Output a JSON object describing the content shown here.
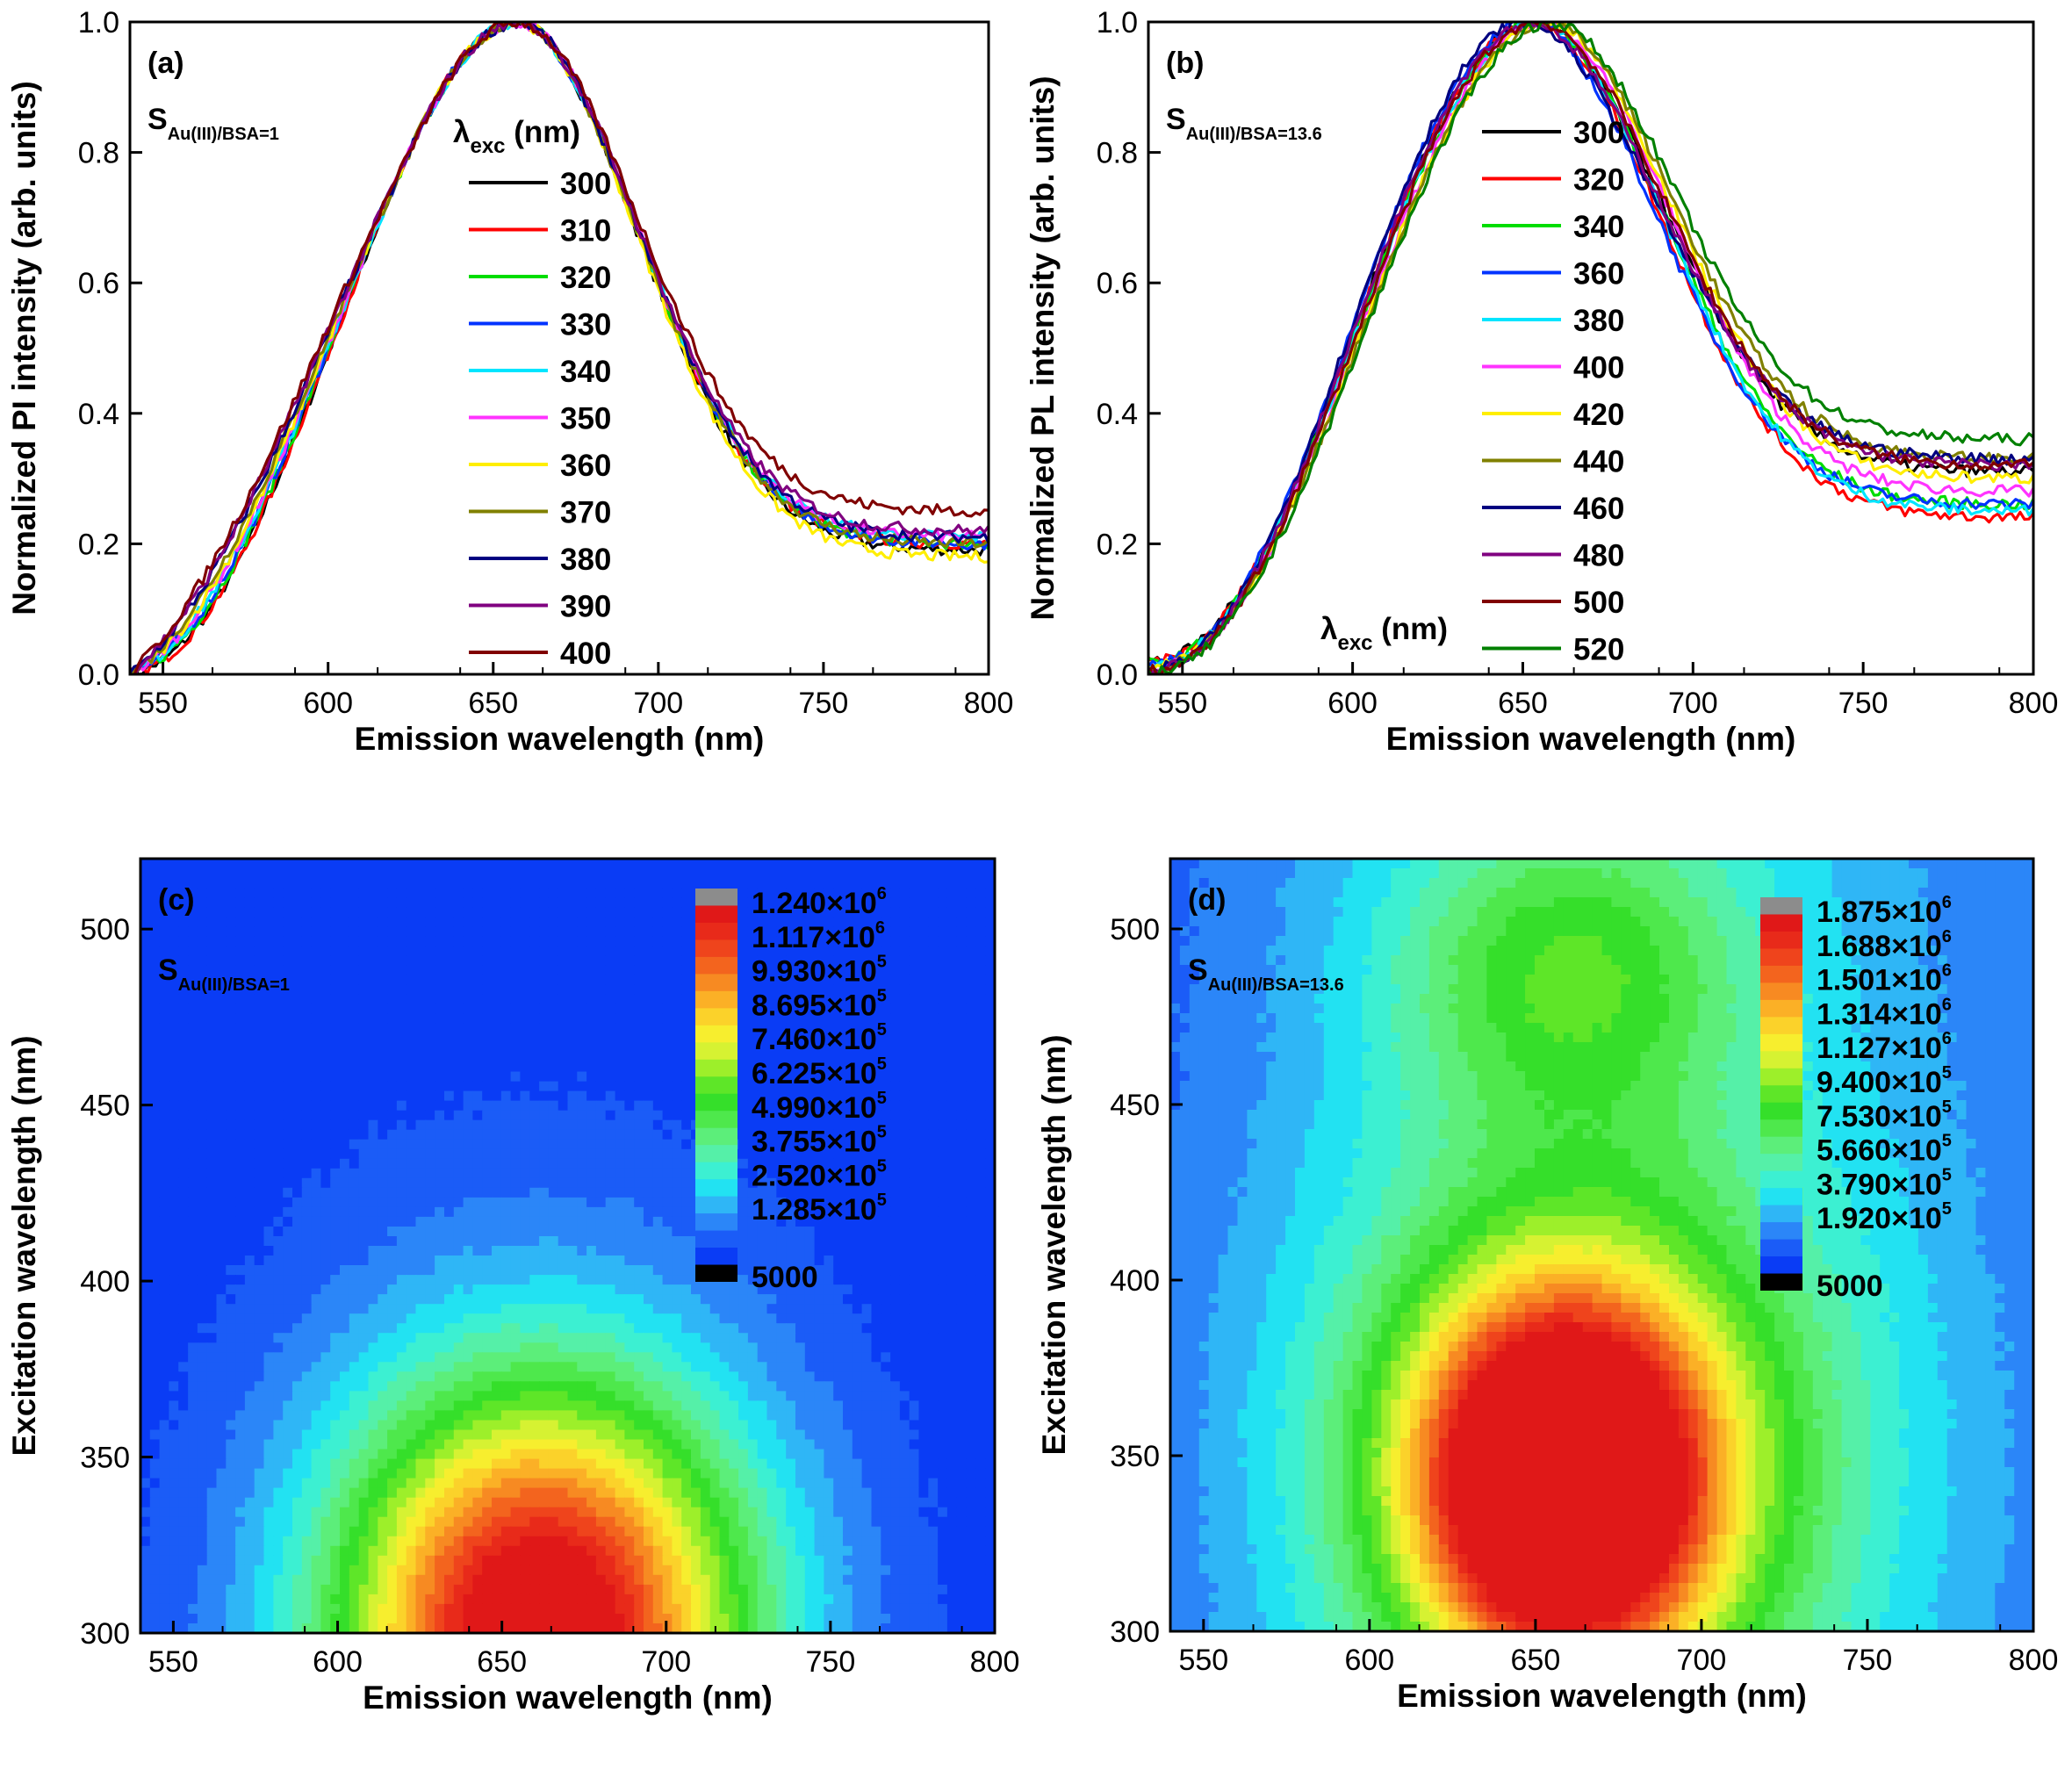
{
  "chart_data": [
    {
      "type": "line",
      "panel": "(a)",
      "sample": {
        "main": "S",
        "sub": "Au(III)/BSA=1"
      },
      "xlabel": "Emission wavelength (nm)",
      "ylabel": "Normalized PI intensity (arb. units)",
      "xlim": [
        540,
        800
      ],
      "ylim": [
        0,
        1.0
      ],
      "xticks": [
        550,
        600,
        650,
        700,
        750,
        800
      ],
      "yticks": [
        0.0,
        0.2,
        0.4,
        0.6,
        0.8,
        1.0
      ],
      "yticklabels": [
        "0.0",
        "0.2",
        "0.4",
        "0.6",
        "0.8",
        "1.0"
      ],
      "legend_title": {
        "main": "λ",
        "sub": "exc",
        "rest": " (nm)"
      },
      "legend_position": "center-left",
      "peak_nm": 658,
      "series": [
        {
          "name": "300",
          "color": "#000000",
          "shoulder": 0.02,
          "tail": 0.19
        },
        {
          "name": "310",
          "color": "#ff0000",
          "shoulder": 0.02,
          "tail": 0.2
        },
        {
          "name": "320",
          "color": "#00dd00",
          "shoulder": 0.03,
          "tail": 0.2
        },
        {
          "name": "330",
          "color": "#0033ff",
          "shoulder": 0.035,
          "tail": 0.2
        },
        {
          "name": "340",
          "color": "#00e5ff",
          "shoulder": 0.04,
          "tail": 0.21
        },
        {
          "name": "350",
          "color": "#ff33ff",
          "shoulder": 0.045,
          "tail": 0.21
        },
        {
          "name": "360",
          "color": "#ffee00",
          "shoulder": 0.05,
          "tail": 0.18
        },
        {
          "name": "370",
          "color": "#808000",
          "shoulder": 0.06,
          "tail": 0.2
        },
        {
          "name": "380",
          "color": "#000080",
          "shoulder": 0.07,
          "tail": 0.21
        },
        {
          "name": "390",
          "color": "#800080",
          "shoulder": 0.075,
          "tail": 0.22
        },
        {
          "name": "400",
          "color": "#800000",
          "shoulder": 0.085,
          "tail": 0.25
        }
      ]
    },
    {
      "type": "line",
      "panel": "(b)",
      "sample": {
        "main": "S",
        "sub": "Au(III)/BSA=13.6"
      },
      "xlabel": "Emission wavelength (nm)",
      "ylabel": "Normalized PL intensity (arb. units)",
      "xlim": [
        540,
        800
      ],
      "ylim": [
        0,
        1.0
      ],
      "xticks": [
        550,
        600,
        650,
        700,
        750,
        800
      ],
      "yticks": [
        0.0,
        0.2,
        0.4,
        0.6,
        0.8,
        1.0
      ],
      "yticklabels": [
        "0.0",
        "0.2",
        "0.4",
        "0.6",
        "0.8",
        "1.0"
      ],
      "legend_title": {
        "main": "λ",
        "sub": "exc",
        "rest": " (nm)"
      },
      "legend_position": "center",
      "series": [
        {
          "name": "300",
          "color": "#000000",
          "peak": 654,
          "tail": 0.31
        },
        {
          "name": "320",
          "color": "#ff0000",
          "peak": 654,
          "tail": 0.24
        },
        {
          "name": "340",
          "color": "#00dd00",
          "peak": 655,
          "tail": 0.26
        },
        {
          "name": "360",
          "color": "#0033ff",
          "peak": 652,
          "tail": 0.26
        },
        {
          "name": "380",
          "color": "#00e5ff",
          "peak": 655,
          "tail": 0.25
        },
        {
          "name": "400",
          "color": "#ff33ff",
          "peak": 657,
          "tail": 0.28
        },
        {
          "name": "420",
          "color": "#ffee00",
          "peak": 658,
          "tail": 0.3
        },
        {
          "name": "440",
          "color": "#808000",
          "peak": 658,
          "tail": 0.33
        },
        {
          "name": "460",
          "color": "#000080",
          "peak": 651,
          "tail": 0.33
        },
        {
          "name": "480",
          "color": "#800080",
          "peak": 653,
          "tail": 0.32
        },
        {
          "name": "500",
          "color": "#800000",
          "peak": 655,
          "tail": 0.32
        },
        {
          "name": "520",
          "color": "#008000",
          "peak": 659,
          "tail": 0.36
        }
      ]
    },
    {
      "type": "heatmap",
      "panel": "(c)",
      "sample": {
        "main": "S",
        "sub": "Au(III)/BSA=1"
      },
      "xlabel": "Emission wavelength (nm)",
      "ylabel": "Excitation wavelength (nm)",
      "xlim": [
        540,
        800
      ],
      "ylim": [
        300,
        520
      ],
      "xticks": [
        550,
        600,
        650,
        700,
        750,
        800
      ],
      "yticks": [
        300,
        350,
        400,
        450,
        500
      ],
      "peak": {
        "emission": 660,
        "excitation": 305,
        "intensity": 1240000
      },
      "colorbar": {
        "levels": [
          {
            "mantissa": "1.240",
            "exp": "6"
          },
          {
            "mantissa": "1.117",
            "exp": "6"
          },
          {
            "mantissa": "9.930",
            "exp": "5"
          },
          {
            "mantissa": "8.695",
            "exp": "5"
          },
          {
            "mantissa": "7.460",
            "exp": "5"
          },
          {
            "mantissa": "6.225",
            "exp": "5"
          },
          {
            "mantissa": "4.990",
            "exp": "5"
          },
          {
            "mantissa": "3.755",
            "exp": "5"
          },
          {
            "mantissa": "2.520",
            "exp": "5"
          },
          {
            "mantissa": "1.285",
            "exp": "5"
          }
        ],
        "min_label": "5000"
      }
    },
    {
      "type": "heatmap",
      "panel": "(d)",
      "sample": {
        "main": "S",
        "sub": "Au(III)/BSA=13.6"
      },
      "xlabel": "Emission wavelength (nm)",
      "ylabel": "Excitation wavelength (nm)",
      "xlim": [
        540,
        800
      ],
      "ylim": [
        300,
        520
      ],
      "xticks": [
        550,
        600,
        650,
        700,
        750,
        800
      ],
      "yticks": [
        300,
        350,
        400,
        450,
        500
      ],
      "peak": {
        "emission": 658,
        "excitation": 345,
        "intensity": 1875000
      },
      "colorbar": {
        "levels": [
          {
            "mantissa": "1.875",
            "exp": "6"
          },
          {
            "mantissa": "1.688",
            "exp": "6"
          },
          {
            "mantissa": "1.501",
            "exp": "6"
          },
          {
            "mantissa": "1.314",
            "exp": "6"
          },
          {
            "mantissa": "1.127",
            "exp": "6"
          },
          {
            "mantissa": "9.400",
            "exp": "5"
          },
          {
            "mantissa": "7.530",
            "exp": "5"
          },
          {
            "mantissa": "5.660",
            "exp": "5"
          },
          {
            "mantissa": "3.790",
            "exp": "5"
          },
          {
            "mantissa": "1.920",
            "exp": "5"
          }
        ],
        "min_label": "5000"
      }
    }
  ]
}
